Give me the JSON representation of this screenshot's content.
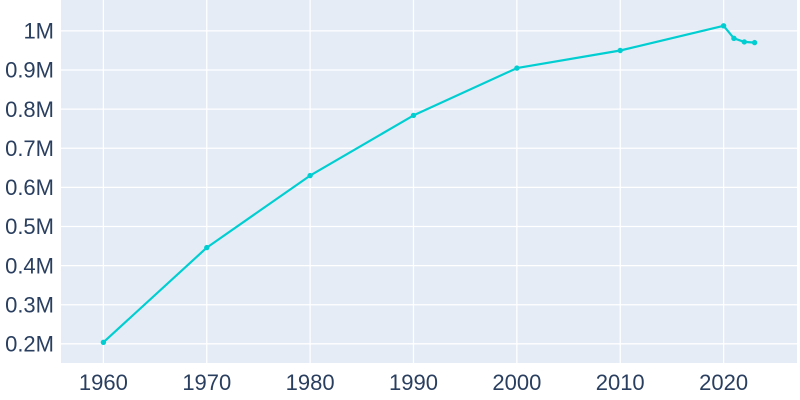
{
  "chart_data": {
    "type": "line",
    "title": "",
    "xlabel": "",
    "ylabel": "",
    "y_unit": "millions",
    "x": [
      1960,
      1970,
      1980,
      1990,
      2000,
      2010,
      2020,
      2021,
      2022,
      2023
    ],
    "values": [
      0.204,
      0.446,
      0.63,
      0.784,
      0.905,
      0.95,
      1.013,
      0.981,
      0.972,
      0.97
    ],
    "x_ticks": [
      {
        "value": 1960,
        "label": "1960"
      },
      {
        "value": 1970,
        "label": "1970"
      },
      {
        "value": 1980,
        "label": "1980"
      },
      {
        "value": 1990,
        "label": "1990"
      },
      {
        "value": 2000,
        "label": "2000"
      },
      {
        "value": 2010,
        "label": "2010"
      },
      {
        "value": 2020,
        "label": "2020"
      }
    ],
    "y_ticks": [
      {
        "value": 0.2,
        "label": "0.2M"
      },
      {
        "value": 0.3,
        "label": "0.3M"
      },
      {
        "value": 0.4,
        "label": "0.4M"
      },
      {
        "value": 0.5,
        "label": "0.5M"
      },
      {
        "value": 0.6,
        "label": "0.6M"
      },
      {
        "value": 0.7,
        "label": "0.7M"
      },
      {
        "value": 0.8,
        "label": "0.8M"
      },
      {
        "value": 0.9,
        "label": "0.9M"
      },
      {
        "value": 1.0,
        "label": "1M"
      }
    ],
    "x_range": [
      1955.9,
      2027.1
    ],
    "y_range": [
      0.151,
      1.079
    ],
    "grid": true,
    "legend": "none",
    "markers": true,
    "colors": {
      "line": "#00CED1",
      "marker": "#00CED1",
      "plot_background": "#E5ECF6",
      "page_background": "#FFFFFF",
      "gridline": "#FFFFFF",
      "tick_text": "#2A3F5F"
    }
  }
}
